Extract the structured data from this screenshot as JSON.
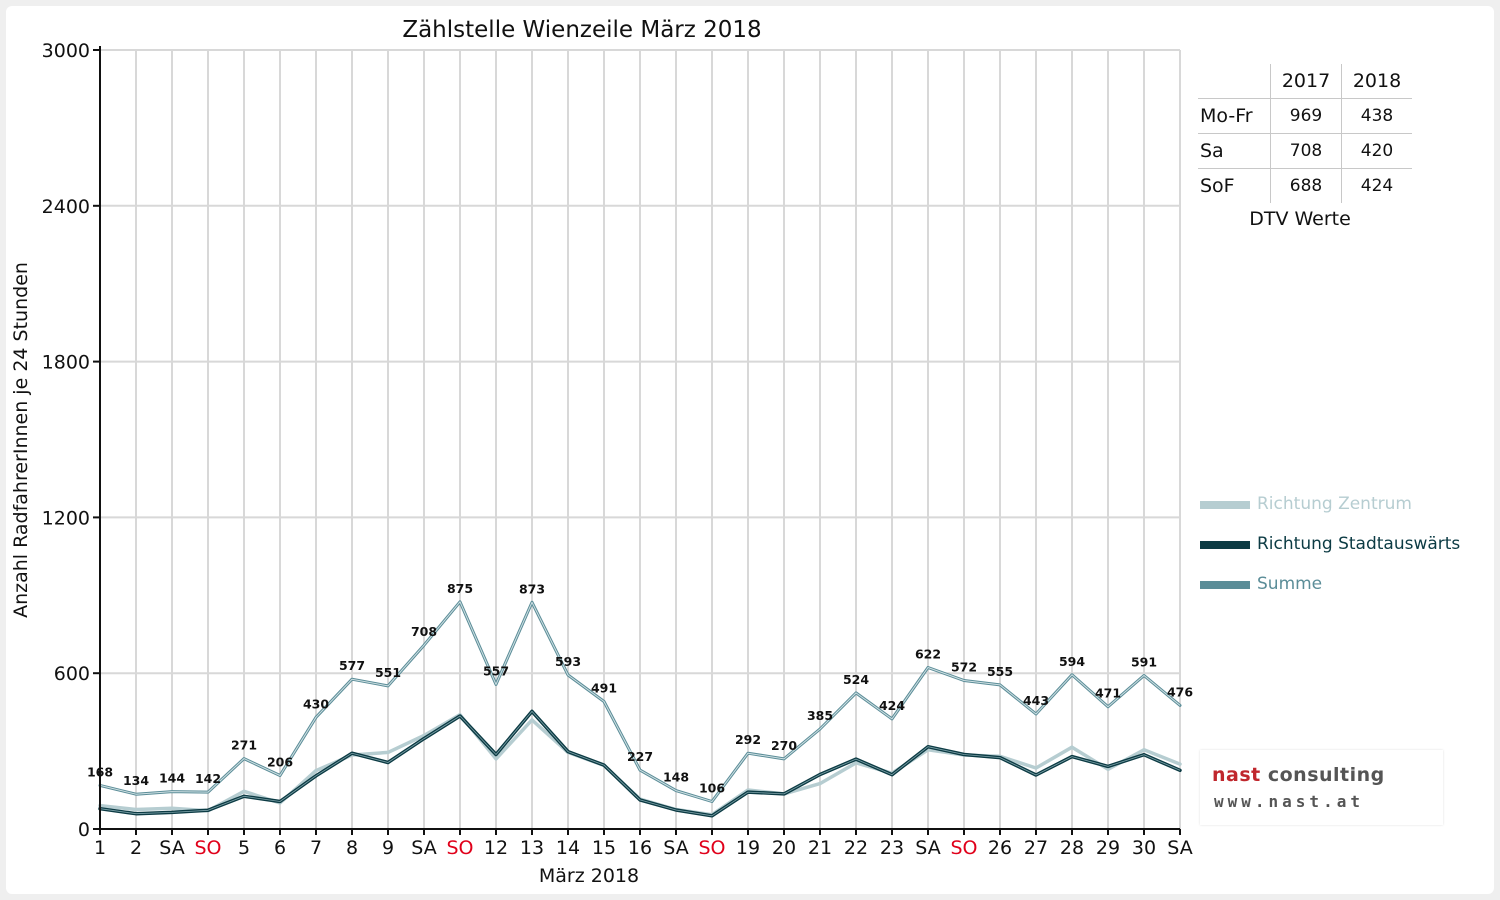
{
  "colors": {
    "zentrum": "#b6cdd1",
    "stadtauswaerts": "#0c3b44",
    "summe": "#5b8d98",
    "weekend_tick": "#e0001a",
    "grid": "#d8d8d8",
    "axis": "#111111"
  },
  "chart_data": {
    "type": "line",
    "title": "Zählstelle Wienzeile März 2018",
    "xlabel": "März 2018",
    "ylabel": "Anzahl RadfahrerInnen je 24 Stunden",
    "ylim": [
      0,
      3000
    ],
    "yticks": [
      "0",
      "600",
      "1200",
      "1800",
      "2400",
      "3000"
    ],
    "grid": true,
    "legend_position": "right",
    "categories": [
      "1",
      "2",
      "SA",
      "SO",
      "5",
      "6",
      "7",
      "8",
      "9",
      "SA",
      "SO",
      "12",
      "13",
      "14",
      "15",
      "16",
      "SA",
      "SO",
      "19",
      "20",
      "21",
      "22",
      "23",
      "SA",
      "SO",
      "26",
      "27",
      "28",
      "29",
      "30",
      "SA"
    ],
    "weekend_red": [
      false,
      false,
      false,
      true,
      false,
      false,
      false,
      false,
      false,
      false,
      true,
      false,
      false,
      false,
      false,
      false,
      false,
      true,
      false,
      false,
      false,
      false,
      false,
      false,
      true,
      false,
      false,
      false,
      false,
      false,
      false
    ],
    "series": [
      {
        "name": "Richtung Zentrum",
        "values": [
          90,
          75,
          80,
          70,
          145,
          100,
          225,
          285,
          295,
          360,
          440,
          270,
          420,
          295,
          245,
          115,
          75,
          55,
          150,
          135,
          175,
          255,
          215,
          305,
          285,
          280,
          235,
          315,
          230,
          305,
          250
        ]
      },
      {
        "name": "Richtung Stadtauswärts",
        "values": [
          78,
          59,
          64,
          72,
          126,
          106,
          205,
          292,
          256,
          348,
          435,
          287,
          453,
          298,
          246,
          112,
          73,
          51,
          142,
          135,
          210,
          269,
          209,
          317,
          287,
          275,
          208,
          279,
          241,
          286,
          226
        ]
      },
      {
        "name": "Summe",
        "values": [
          168,
          134,
          144,
          142,
          271,
          206,
          430,
          577,
          551,
          708,
          875,
          557,
          873,
          593,
          491,
          227,
          148,
          106,
          292,
          270,
          385,
          524,
          424,
          622,
          572,
          555,
          443,
          594,
          471,
          591,
          476
        ],
        "labels": [
          "168",
          "134",
          "144",
          "142",
          "271",
          "206",
          "430",
          "577",
          "551",
          "708",
          "875",
          "557",
          "873",
          "593",
          "491",
          "227",
          "148",
          "106",
          "292",
          "270",
          "385",
          "524",
          "424",
          "622",
          "572",
          "555",
          "443",
          "594",
          "471",
          "591",
          "476"
        ]
      }
    ]
  },
  "dtv": {
    "caption": "DTV Werte",
    "col_2017": "2017",
    "col_2018": "2018",
    "rows": [
      {
        "label": "Mo-Fr",
        "v2017": "969",
        "v2018": "438"
      },
      {
        "label": "Sa",
        "v2017": "708",
        "v2018": "420"
      },
      {
        "label": "SoF",
        "v2017": "688",
        "v2018": "424"
      }
    ]
  },
  "logo": {
    "name_part1": "nast",
    "name_part2": " consulting",
    "url": "www.nast.at"
  }
}
